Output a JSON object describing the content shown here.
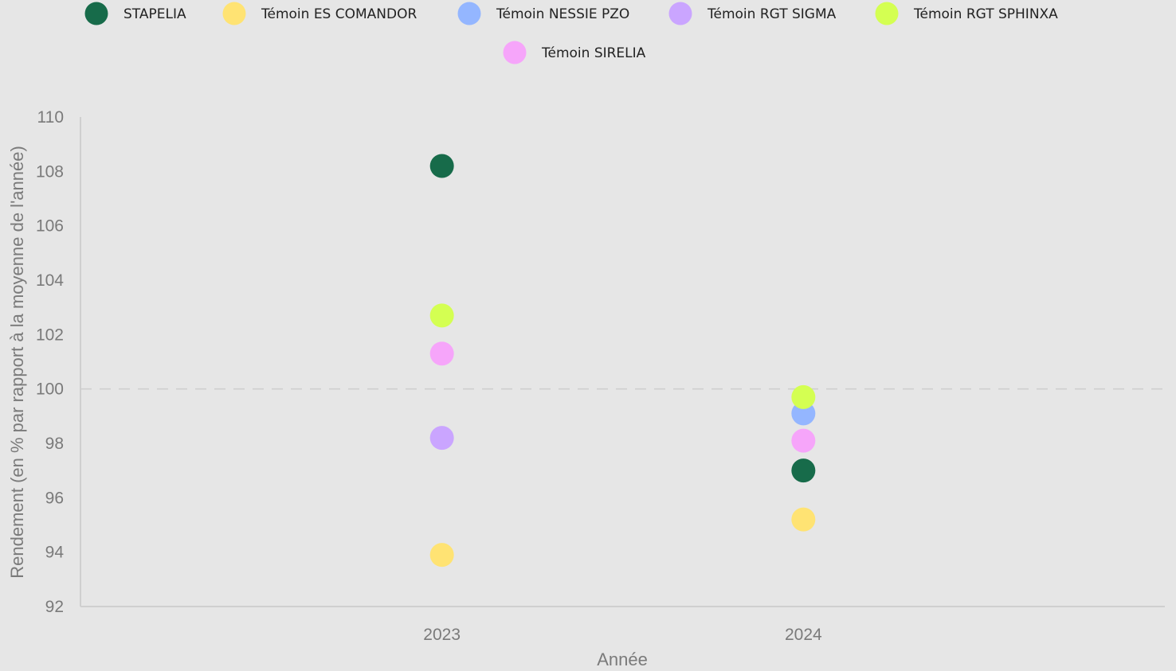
{
  "chart_data": {
    "type": "scatter",
    "xlabel": "Année",
    "ylabel": "Rendement (en % par rapport à la moyenne de l'année)",
    "categories": [
      "2023",
      "2024"
    ],
    "ylim": [
      92,
      110
    ],
    "yticks": [
      92,
      94,
      96,
      98,
      100,
      102,
      104,
      106,
      108,
      110
    ],
    "reference_line": {
      "value": 100,
      "style": "dashed"
    },
    "grid": false,
    "legend_position": "top",
    "series": [
      {
        "name": "STAPELIA",
        "color": "#176b4a",
        "values": [
          108.2,
          97.0
        ]
      },
      {
        "name": "Témoin ES COMANDOR",
        "color": "#ffe373",
        "values": [
          93.9,
          95.2
        ]
      },
      {
        "name": "Témoin NESSIE PZO",
        "color": "#94b6ff",
        "values": [
          null,
          99.1
        ]
      },
      {
        "name": "Témoin RGT SIGMA",
        "color": "#caa5ff",
        "values": [
          98.2,
          null
        ]
      },
      {
        "name": "Témoin RGT SPHINXA",
        "color": "#d4ff52",
        "values": [
          102.7,
          99.7
        ]
      },
      {
        "name": "Témoin SIRELIA",
        "color": "#f6a5fa",
        "values": [
          101.3,
          98.1
        ]
      }
    ]
  }
}
